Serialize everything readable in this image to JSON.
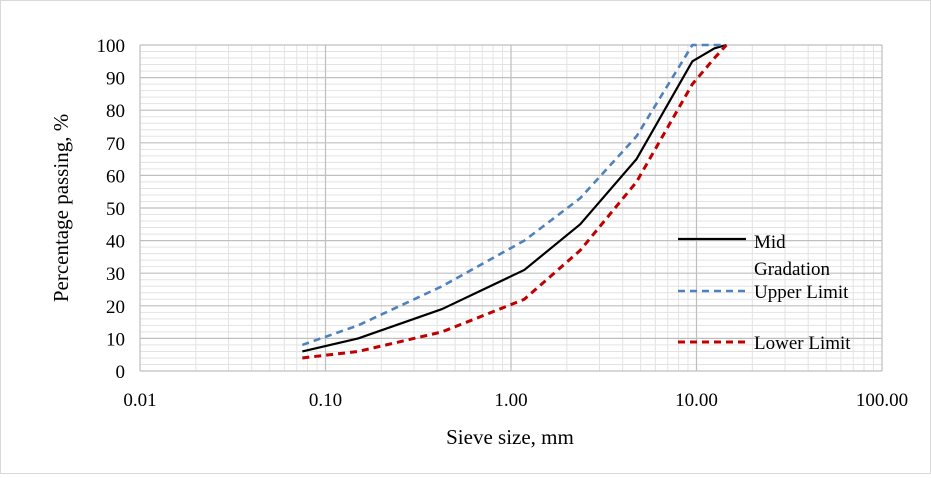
{
  "chart_data": {
    "type": "line",
    "xscale": "log",
    "xlabel": "Sieve size, mm",
    "ylabel": "Percentage passing, %",
    "xlim": [
      0.01,
      100
    ],
    "ylim": [
      0,
      100
    ],
    "xticks": [
      "0.01",
      "0.10",
      "1.00",
      "10.00",
      "100.00"
    ],
    "yticks": [
      "0",
      "10",
      "20",
      "30",
      "40",
      "50",
      "60",
      "70",
      "80",
      "90",
      "100"
    ],
    "grid": true,
    "legend": {
      "placement": "right",
      "entries": [
        "Mid Gradation",
        "Upper Limit",
        "Lower Limit"
      ]
    },
    "series": [
      {
        "name": "Mid Gradation",
        "color": "#000000",
        "style": "solid",
        "x": [
          0.075,
          0.15,
          0.425,
          1.18,
          2.36,
          4.75,
          9.5,
          12.5,
          14.5
        ],
        "y": [
          6,
          10,
          19,
          31,
          45,
          65,
          95,
          99,
          100
        ]
      },
      {
        "name": "Upper Limit",
        "color": "#4f81bd",
        "style": "dashed",
        "x": [
          0.075,
          0.15,
          0.425,
          1.18,
          2.36,
          4.75,
          9.5,
          12.5,
          14.5
        ],
        "y": [
          8,
          14,
          26,
          40,
          53,
          72,
          100,
          100,
          100
        ]
      },
      {
        "name": "Lower Limit",
        "color": "#c00000",
        "style": "dashed",
        "x": [
          0.075,
          0.15,
          0.425,
          1.18,
          2.36,
          4.75,
          9.5,
          12.5,
          14.5
        ],
        "y": [
          4,
          6,
          12,
          22,
          37,
          58,
          88,
          96,
          100
        ]
      }
    ]
  }
}
